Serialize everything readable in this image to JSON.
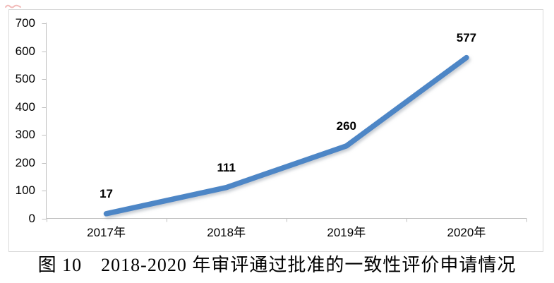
{
  "chart": {
    "caption": "图 10　2018-2020 年审评通过批准的一致性评价申请情况"
  },
  "chart_data": {
    "type": "line",
    "title": "",
    "categories": [
      "2017年",
      "2018年",
      "2019年",
      "2020年"
    ],
    "series": [
      {
        "values": [
          17,
          111,
          260,
          577
        ],
        "data_labels": [
          "17",
          "111",
          "260",
          "577"
        ],
        "color": "#4E86C6"
      }
    ],
    "xlabel": "",
    "ylabel": "",
    "y_ticks": [
      0,
      100,
      200,
      300,
      400,
      500,
      600,
      700
    ],
    "ylim": [
      0,
      700
    ],
    "grid": false,
    "legend": false,
    "data_labels_visible": true,
    "axis_color": "#bfbfbf",
    "border_color": "#d9d9d9",
    "label_color": "#000000",
    "shadow_color": "#9aa3ad",
    "red_mark_color": "#e8837f"
  }
}
